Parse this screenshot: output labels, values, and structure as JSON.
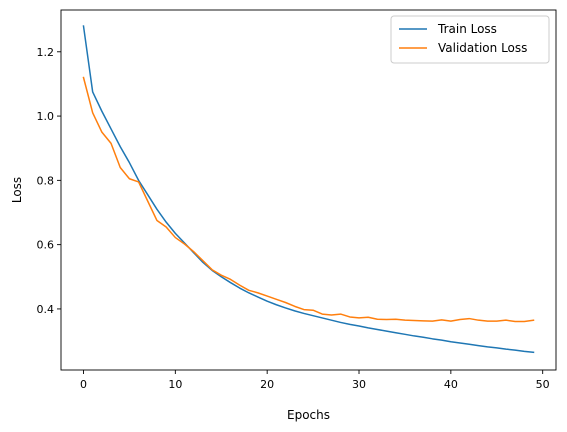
{
  "chart_data": {
    "type": "line",
    "xlabel": "Epochs",
    "ylabel": "Loss",
    "xlim": [
      -2.45,
      51.45
    ],
    "ylim": [
      0.21,
      1.33
    ],
    "xticks": [
      0,
      10,
      20,
      30,
      40,
      50
    ],
    "yticks": [
      0.4,
      0.6,
      0.8,
      1.0,
      1.2
    ],
    "grid": false,
    "legend_position": "top-right",
    "series": [
      {
        "name": "Train Loss",
        "color": "#1f77b4",
        "x": [
          0,
          1,
          2,
          3,
          4,
          5,
          6,
          7,
          8,
          9,
          10,
          11,
          12,
          13,
          14,
          15,
          16,
          17,
          18,
          19,
          20,
          21,
          22,
          23,
          24,
          25,
          26,
          27,
          28,
          29,
          30,
          31,
          32,
          33,
          34,
          35,
          36,
          37,
          38,
          39,
          40,
          41,
          42,
          43,
          44,
          45,
          46,
          47,
          48,
          49
        ],
        "values": [
          1.28,
          1.075,
          1.015,
          0.96,
          0.905,
          0.855,
          0.8,
          0.755,
          0.71,
          0.67,
          0.635,
          0.605,
          0.575,
          0.545,
          0.52,
          0.5,
          0.482,
          0.465,
          0.45,
          0.437,
          0.424,
          0.413,
          0.403,
          0.394,
          0.386,
          0.379,
          0.372,
          0.365,
          0.358,
          0.352,
          0.347,
          0.341,
          0.336,
          0.331,
          0.326,
          0.321,
          0.316,
          0.312,
          0.307,
          0.303,
          0.298,
          0.294,
          0.29,
          0.286,
          0.282,
          0.279,
          0.275,
          0.272,
          0.268,
          0.265
        ]
      },
      {
        "name": "Validation Loss",
        "color": "#ff7f0e",
        "x": [
          0,
          1,
          2,
          3,
          4,
          5,
          6,
          7,
          8,
          9,
          10,
          11,
          12,
          13,
          14,
          15,
          16,
          17,
          18,
          19,
          20,
          21,
          22,
          23,
          24,
          25,
          26,
          27,
          28,
          29,
          30,
          31,
          32,
          33,
          34,
          35,
          36,
          37,
          38,
          39,
          40,
          41,
          42,
          43,
          44,
          45,
          46,
          47,
          48,
          49
        ],
        "values": [
          1.12,
          1.01,
          0.95,
          0.915,
          0.84,
          0.805,
          0.795,
          0.735,
          0.675,
          0.655,
          0.622,
          0.602,
          0.578,
          0.55,
          0.522,
          0.505,
          0.492,
          0.474,
          0.458,
          0.45,
          0.44,
          0.43,
          0.42,
          0.408,
          0.398,
          0.396,
          0.384,
          0.381,
          0.384,
          0.375,
          0.372,
          0.374,
          0.368,
          0.367,
          0.368,
          0.365,
          0.364,
          0.363,
          0.362,
          0.366,
          0.362,
          0.367,
          0.37,
          0.365,
          0.362,
          0.362,
          0.365,
          0.361,
          0.361,
          0.365
        ]
      }
    ]
  }
}
